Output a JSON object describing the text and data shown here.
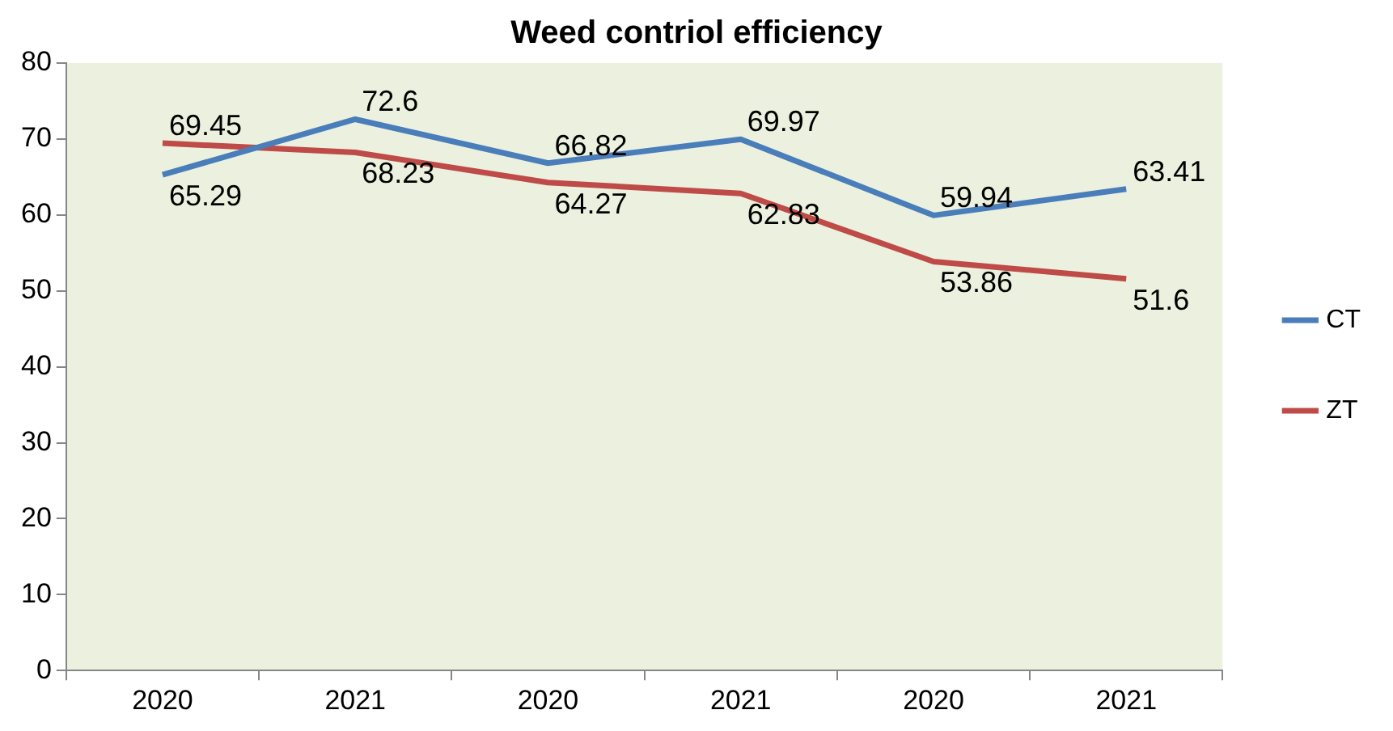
{
  "chart_data": {
    "type": "line",
    "title": "Weed contriol efficiency",
    "categories": [
      "2020",
      "2021",
      "2020",
      "2021",
      "2020",
      "2021"
    ],
    "series": [
      {
        "name": "CT",
        "color": "#4a7ebb",
        "values": [
          65.29,
          72.6,
          66.82,
          69.97,
          59.94,
          63.41
        ]
      },
      {
        "name": "ZT",
        "color": "#be4b48",
        "values": [
          69.45,
          68.23,
          64.27,
          62.83,
          53.86,
          51.6
        ]
      }
    ],
    "ylim": [
      0,
      80
    ],
    "yticks": [
      0,
      10,
      20,
      30,
      40,
      50,
      60,
      70,
      80
    ],
    "grid": false,
    "legend": "right",
    "marker": "none",
    "line_style": "solid",
    "data_labels": true
  }
}
